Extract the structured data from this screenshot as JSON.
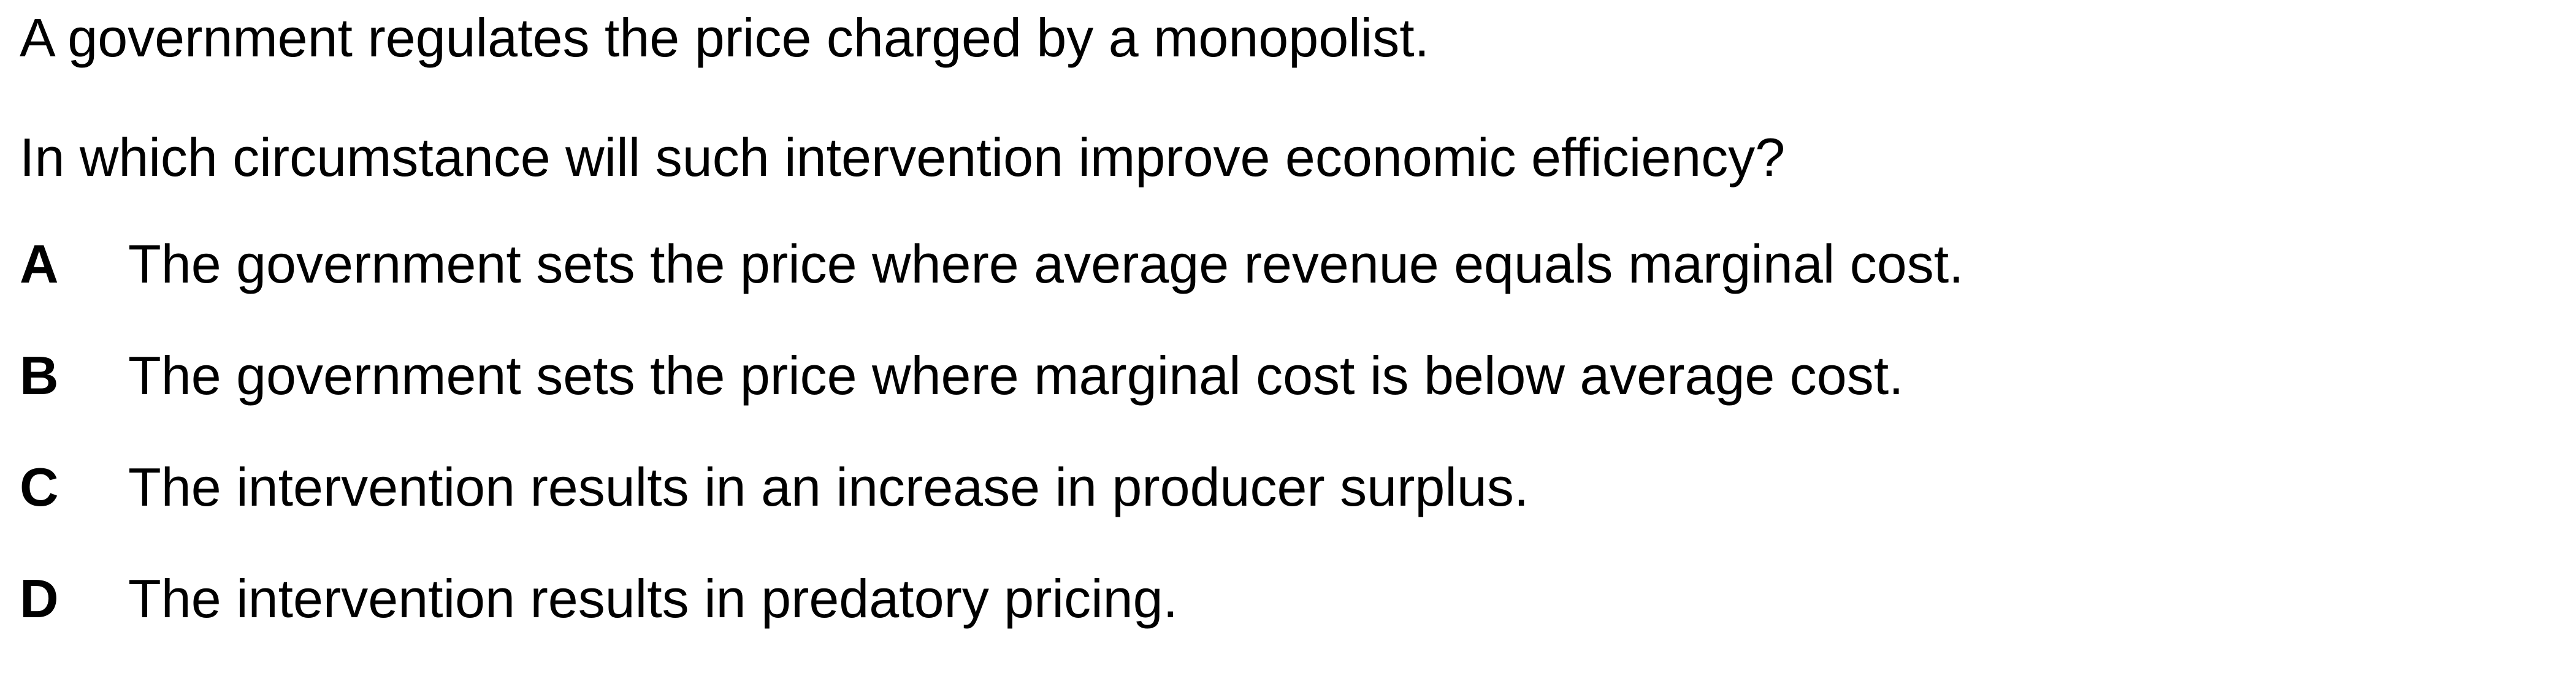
{
  "question": {
    "intro": "A government regulates the price charged by a monopolist.",
    "prompt": "In which circumstance will such intervention improve economic efficiency?",
    "options": [
      {
        "letter": "A",
        "text": "The government sets the price where average revenue equals marginal cost."
      },
      {
        "letter": "B",
        "text": "The government sets the price where marginal cost is below average cost."
      },
      {
        "letter": "C",
        "text": "The intervention results in an increase in producer surplus."
      },
      {
        "letter": "D",
        "text": "The intervention results in predatory pricing."
      }
    ]
  }
}
